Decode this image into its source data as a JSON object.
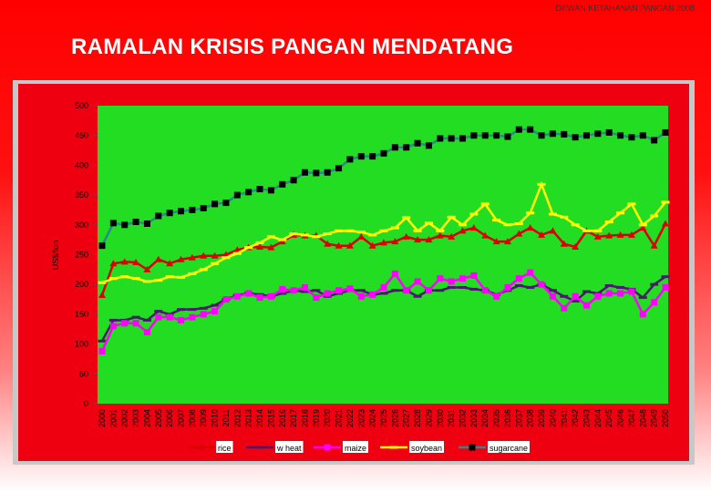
{
  "header_note": "DEWAN KETAHANAN PANGAN 2008",
  "title": "RAMALAN KRISIS PANGAN MENDATANG",
  "chart_data": {
    "type": "line",
    "y_label": "US$/ton",
    "categories": [
      "2000",
      "2001",
      "2002",
      "2003",
      "2004",
      "2005",
      "2006",
      "2007",
      "2008",
      "2009",
      "2010",
      "2011",
      "2012",
      "2013",
      "2014",
      "2015",
      "2016",
      "2017",
      "2018",
      "2019",
      "2020",
      "2021",
      "2022",
      "2023",
      "2024",
      "2025",
      "2026",
      "2027",
      "2028",
      "2029",
      "2030",
      "2031",
      "2032",
      "2033",
      "2034",
      "2035",
      "2036",
      "2037",
      "2038",
      "2039",
      "2040",
      "2041",
      "2042",
      "2043",
      "2044",
      "2045",
      "2046",
      "2047",
      "2048",
      "2049",
      "2050"
    ],
    "ylim": [
      0,
      500
    ],
    "yticks": [
      0,
      50,
      100,
      150,
      200,
      250,
      300,
      350,
      400,
      450,
      500
    ],
    "series": [
      {
        "name": "rice",
        "color": "#dd0000",
        "marker": "triangle",
        "marker_color": "#dd0000",
        "values": [
          182,
          235,
          238,
          237,
          225,
          242,
          235,
          242,
          245,
          248,
          248,
          250,
          258,
          262,
          263,
          262,
          272,
          283,
          282,
          282,
          268,
          265,
          265,
          280,
          265,
          270,
          272,
          280,
          275,
          275,
          282,
          280,
          290,
          295,
          282,
          272,
          272,
          285,
          295,
          283,
          290,
          268,
          263,
          290,
          280,
          282,
          283,
          283,
          295,
          265,
          302
        ]
      },
      {
        "name": "w heat",
        "color": "#4b1a6e",
        "marker": "dash",
        "marker_color": "#4b1a6e",
        "values": [
          105,
          140,
          140,
          145,
          140,
          155,
          150,
          158,
          158,
          160,
          165,
          175,
          182,
          185,
          183,
          180,
          185,
          190,
          188,
          190,
          180,
          185,
          190,
          190,
          183,
          185,
          190,
          190,
          180,
          190,
          190,
          195,
          195,
          192,
          190,
          183,
          190,
          198,
          195,
          200,
          190,
          180,
          172,
          188,
          185,
          198,
          195,
          192,
          178,
          200,
          213
        ]
      },
      {
        "name": "maize",
        "color": "#ff00ff",
        "marker": "square",
        "marker_color": "#ff00ff",
        "values": [
          88,
          130,
          135,
          135,
          120,
          145,
          145,
          140,
          145,
          150,
          155,
          175,
          180,
          185,
          178,
          180,
          192,
          190,
          195,
          178,
          185,
          190,
          193,
          180,
          183,
          195,
          218,
          190,
          205,
          190,
          210,
          205,
          210,
          215,
          190,
          180,
          195,
          210,
          220,
          200,
          180,
          160,
          180,
          165,
          180,
          185,
          185,
          188,
          150,
          170,
          195
        ]
      },
      {
        "name": "soybean",
        "color": "#ffff00",
        "marker": "dash",
        "marker_color": "#ffff00",
        "values": [
          203,
          210,
          213,
          210,
          205,
          207,
          213,
          212,
          218,
          225,
          235,
          245,
          252,
          262,
          270,
          280,
          275,
          285,
          283,
          280,
          285,
          290,
          290,
          288,
          283,
          290,
          295,
          312,
          290,
          303,
          290,
          313,
          300,
          318,
          335,
          308,
          300,
          302,
          320,
          368,
          318,
          313,
          300,
          290,
          290,
          305,
          320,
          335,
          300,
          315,
          338
        ]
      },
      {
        "name": "sugarcane",
        "color": "#2a8a8a",
        "marker": "square",
        "marker_color": "#000000",
        "values": [
          265,
          303,
          300,
          305,
          302,
          315,
          320,
          323,
          325,
          328,
          335,
          337,
          350,
          355,
          360,
          358,
          368,
          375,
          388,
          387,
          388,
          395,
          410,
          415,
          415,
          420,
          430,
          430,
          437,
          433,
          445,
          445,
          445,
          450,
          450,
          450,
          448,
          460,
          460,
          450,
          453,
          452,
          447,
          450,
          453,
          455,
          450,
          447,
          450,
          442,
          455
        ]
      }
    ]
  }
}
